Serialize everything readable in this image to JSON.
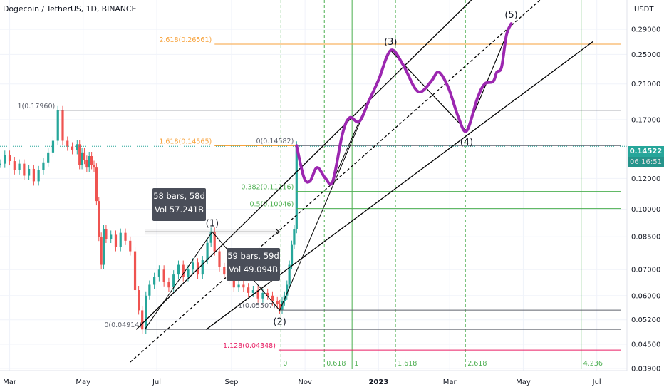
{
  "header": {
    "title": "Dogecoin / TetherUS, 1D, BINANCE",
    "currency": "USDT"
  },
  "price_badge": {
    "price": "0.14522",
    "countdown": "06:16:51"
  },
  "measure_boxes": [
    {
      "bars": "58 bars, 58d",
      "vol": "Vol 57.241B"
    },
    {
      "bars": "59 bars, 59d",
      "vol": "Vol 49.094B"
    }
  ],
  "chart_data": {
    "type": "line",
    "title": "Dogecoin / TetherUS, 1D, BINANCE",
    "yscale": "log",
    "ylim": [
      0.0385,
      0.345
    ],
    "y_ticks": [
      "0.29000",
      "0.25000",
      "0.21000",
      "0.17000",
      "0.12000",
      "0.10000",
      "0.08500",
      "0.07000",
      "0.06000",
      "0.05200",
      "0.04500",
      "0.03900"
    ],
    "x_ticks": [
      {
        "label": "Mar",
        "x": 0.0
      },
      {
        "label": "May",
        "x": 61
      },
      {
        "label": "Jul",
        "x": 122
      },
      {
        "label": "Sep",
        "x": 184
      },
      {
        "label": "Nov",
        "x": 245
      },
      {
        "label": "2023",
        "x": 306
      },
      {
        "label": "Mar",
        "x": 365
      },
      {
        "label": "May",
        "x": 426
      },
      {
        "label": "Jul",
        "x": 487
      }
    ],
    "x_unit": "days from 1 Mar 2022",
    "xlim": [
      -8,
      512
    ],
    "fib_levels": [
      {
        "label": "1(0.17960)",
        "value": 0.1796,
        "x1": 40,
        "x2": 507,
        "color": "#5d606b"
      },
      {
        "label": "0(0.04914)",
        "value": 0.04914,
        "x1": 112,
        "x2": 507,
        "color": "#5d606b"
      },
      {
        "label": "2.618(0.26561)",
        "value": 0.26561,
        "x1": 170,
        "x2": 507,
        "color": "#f7a23b"
      },
      {
        "label": "1.618(0.14565)",
        "value": 0.14565,
        "x1": 170,
        "x2": 238,
        "color": "#f7a23b"
      },
      {
        "label": "0(0.14582)",
        "value": 0.14582,
        "x1": 238,
        "x2": 507,
        "color": "#5d606b"
      },
      {
        "label": "0.382(0.11116)",
        "value": 0.11116,
        "x1": 238,
        "x2": 507,
        "color": "#4caf50"
      },
      {
        "label": "0.5(0.10046)",
        "value": 0.10046,
        "x1": 238,
        "x2": 507,
        "color": "#4caf50"
      },
      {
        "label": "1(0.05507)",
        "value": 0.05507,
        "x1": 223,
        "x2": 507,
        "color": "#5d606b"
      },
      {
        "label": "1.128(0.04348)",
        "value": 0.04348,
        "x1": 223,
        "x2": 507,
        "color": "#e91e63"
      }
    ],
    "time_fib": [
      {
        "label": "0",
        "x": 225
      },
      {
        "label": "0.618",
        "x": 261
      },
      {
        "label": "1",
        "x": 284
      },
      {
        "label": "1.618",
        "x": 320
      },
      {
        "label": "2.618",
        "x": 378
      },
      {
        "label": "4.236",
        "x": 474
      }
    ],
    "wave_labels": [
      {
        "label": "(1)",
        "x": 168,
        "y": 0.0875,
        "pos": "above"
      },
      {
        "label": "(2)",
        "x": 224,
        "y": 0.055,
        "pos": "below"
      },
      {
        "label": "(3)",
        "x": 316,
        "y": 0.256,
        "pos": "above"
      },
      {
        "label": "(4)",
        "x": 379,
        "y": 0.159,
        "pos": "below"
      },
      {
        "label": "(5)",
        "x": 416,
        "y": 0.3,
        "pos": "above"
      }
    ],
    "channel_lines": [
      {
        "from": [
          105,
          0.0491
        ],
        "to": [
          383,
          0.345
        ],
        "style": "solid"
      },
      {
        "from": [
          163,
          0.0491
        ],
        "to": [
          484,
          0.27
        ],
        "style": "solid"
      },
      {
        "from": [
          100,
          0.0405
        ],
        "to": [
          440,
          0.345
        ],
        "style": "dashed"
      }
    ],
    "wave_zigzag": [
      [
        112,
        0.0491
      ],
      [
        168,
        0.0875
      ],
      [
        224,
        0.055
      ],
      [
        316,
        0.256
      ],
      [
        379,
        0.159
      ],
      [
        416,
        0.3
      ]
    ],
    "projection_zigzag": [
      [
        268,
        0.118
      ],
      [
        316,
        0.256
      ],
      [
        379,
        0.159
      ],
      [
        416,
        0.3
      ]
    ],
    "measure_lines": [
      {
        "from": [
          112,
          0.0875
        ],
        "to": [
          224,
          0.0875
        ]
      }
    ],
    "projection_path": [
      [
        238,
        0.1458
      ],
      [
        244,
        0.121
      ],
      [
        249,
        0.118
      ],
      [
        255,
        0.128
      ],
      [
        262,
        0.12
      ],
      [
        268,
        0.118
      ],
      [
        276,
        0.156
      ],
      [
        282,
        0.172
      ],
      [
        290,
        0.168
      ],
      [
        298,
        0.19
      ],
      [
        306,
        0.215
      ],
      [
        316,
        0.256
      ],
      [
        326,
        0.236
      ],
      [
        336,
        0.205
      ],
      [
        342,
        0.201
      ],
      [
        350,
        0.214
      ],
      [
        356,
        0.225
      ],
      [
        364,
        0.205
      ],
      [
        372,
        0.173
      ],
      [
        379,
        0.159
      ],
      [
        388,
        0.193
      ],
      [
        394,
        0.21
      ],
      [
        401,
        0.213
      ],
      [
        404,
        0.225
      ],
      [
        408,
        0.232
      ],
      [
        412,
        0.28
      ],
      [
        416,
        0.3
      ]
    ],
    "price_series": [
      [
        -8,
        0.131
      ],
      [
        -4,
        0.138
      ],
      [
        0,
        0.133
      ],
      [
        4,
        0.126
      ],
      [
        8,
        0.131
      ],
      [
        12,
        0.122
      ],
      [
        16,
        0.127
      ],
      [
        20,
        0.118
      ],
      [
        24,
        0.126
      ],
      [
        28,
        0.132
      ],
      [
        32,
        0.14
      ],
      [
        36,
        0.15
      ],
      [
        40,
        0.1796
      ],
      [
        44,
        0.15
      ],
      [
        48,
        0.145
      ],
      [
        52,
        0.142
      ],
      [
        56,
        0.147
      ],
      [
        58,
        0.13
      ],
      [
        60,
        0.14
      ],
      [
        62,
        0.134
      ],
      [
        64,
        0.128
      ],
      [
        66,
        0.137
      ],
      [
        68,
        0.13
      ],
      [
        70,
        0.128
      ],
      [
        72,
        0.105
      ],
      [
        74,
        0.085
      ],
      [
        76,
        0.072
      ],
      [
        78,
        0.089
      ],
      [
        80,
        0.084
      ],
      [
        84,
        0.086
      ],
      [
        88,
        0.08
      ],
      [
        92,
        0.087
      ],
      [
        96,
        0.083
      ],
      [
        100,
        0.078
      ],
      [
        104,
        0.062
      ],
      [
        107,
        0.055
      ],
      [
        110,
        0.0491
      ],
      [
        113,
        0.06
      ],
      [
        116,
        0.064
      ],
      [
        120,
        0.067
      ],
      [
        124,
        0.07
      ],
      [
        128,
        0.065
      ],
      [
        132,
        0.063
      ],
      [
        136,
        0.068
      ],
      [
        140,
        0.072
      ],
      [
        144,
        0.067
      ],
      [
        148,
        0.07
      ],
      [
        152,
        0.073
      ],
      [
        156,
        0.068
      ],
      [
        160,
        0.074
      ],
      [
        164,
        0.082
      ],
      [
        167,
        0.0875
      ],
      [
        170,
        0.078
      ],
      [
        174,
        0.071
      ],
      [
        178,
        0.068
      ],
      [
        182,
        0.066
      ],
      [
        186,
        0.063
      ],
      [
        190,
        0.064
      ],
      [
        194,
        0.063
      ],
      [
        198,
        0.061
      ],
      [
        202,
        0.062
      ],
      [
        206,
        0.059
      ],
      [
        210,
        0.061
      ],
      [
        214,
        0.06
      ],
      [
        218,
        0.058
      ],
      [
        222,
        0.057
      ],
      [
        224,
        0.0551
      ],
      [
        226,
        0.058
      ],
      [
        228,
        0.06
      ],
      [
        230,
        0.064
      ],
      [
        232,
        0.072
      ],
      [
        234,
        0.081
      ],
      [
        236,
        0.089
      ],
      [
        238,
        0.1458
      ]
    ]
  }
}
